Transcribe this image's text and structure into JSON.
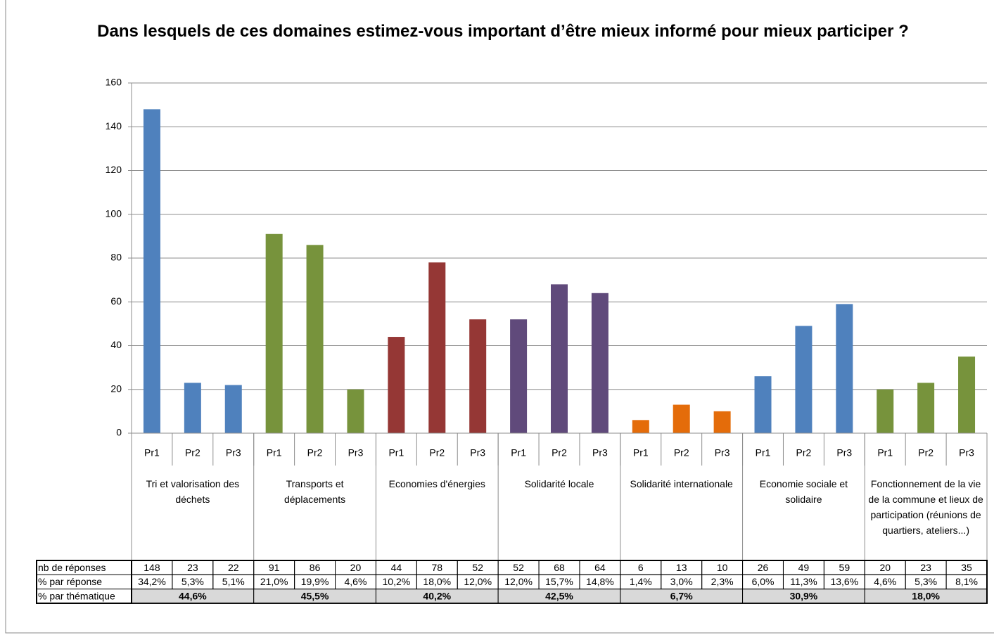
{
  "chart_data": {
    "type": "bar",
    "title": "Dans lesquels de ces domaines estimez-vous important d’être mieux informé pour mieux participer ?",
    "ylim": [
      0,
      160
    ],
    "yticks": [
      0,
      20,
      40,
      60,
      80,
      100,
      120,
      140,
      160
    ],
    "grid": true,
    "row_labels": [
      "nb de réponses",
      "% par réponse",
      "% par thématique"
    ],
    "groups": [
      {
        "name": "Tri et valorisation des déchets",
        "color": "#4f81bd",
        "categories": [
          "Pr1",
          "Pr2",
          "Pr3"
        ],
        "values": [
          148,
          23,
          22
        ],
        "shares": [
          "34,2%",
          "5,3%",
          "5,1%"
        ],
        "theme_share": "44,6%"
      },
      {
        "name": "Transports et déplacements",
        "color": "#77933c",
        "categories": [
          "Pr1",
          "Pr2",
          "Pr3"
        ],
        "values": [
          91,
          86,
          20
        ],
        "shares": [
          "21,0%",
          "19,9%",
          "4,6%"
        ],
        "theme_share": "45,5%"
      },
      {
        "name": "Economies d'énergies",
        "color": "#953735",
        "categories": [
          "Pr1",
          "Pr2",
          "Pr3"
        ],
        "values": [
          44,
          78,
          52
        ],
        "shares": [
          "10,2%",
          "18,0%",
          "12,0%"
        ],
        "theme_share": "40,2%"
      },
      {
        "name": "Solidarité locale",
        "color": "#604a7b",
        "categories": [
          "Pr1",
          "Pr2",
          "Pr3"
        ],
        "values": [
          52,
          68,
          64
        ],
        "shares": [
          "12,0%",
          "15,7%",
          "14,8%"
        ],
        "theme_share": "42,5%"
      },
      {
        "name": "Solidarité internationale",
        "color": "#e46c0a",
        "categories": [
          "Pr1",
          "Pr2",
          "Pr3"
        ],
        "values": [
          6,
          13,
          10
        ],
        "shares": [
          "1,4%",
          "3,0%",
          "2,3%"
        ],
        "theme_share": "6,7%"
      },
      {
        "name": "Economie sociale et solidaire",
        "color": "#4f81bd",
        "categories": [
          "Pr1",
          "Pr2",
          "Pr3"
        ],
        "values": [
          26,
          49,
          59
        ],
        "shares": [
          "6,0%",
          "11,3%",
          "13,6%"
        ],
        "theme_share": "30,9%"
      },
      {
        "name": "Fonctionnement de la vie de la commune et lieux de participation (réunions de quartiers, ateliers...)",
        "color": "#77933c",
        "categories": [
          "Pr1",
          "Pr2",
          "Pr3"
        ],
        "values": [
          20,
          23,
          35
        ],
        "shares": [
          "4,6%",
          "5,3%",
          "8,1%"
        ],
        "theme_share": "18,0%"
      }
    ]
  }
}
